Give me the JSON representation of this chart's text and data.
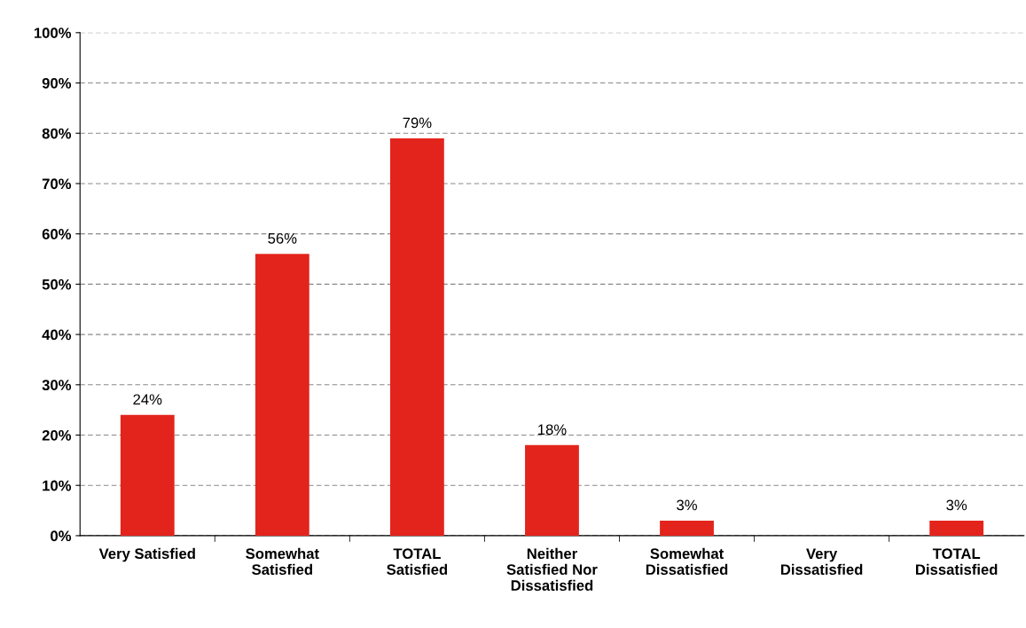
{
  "chart_data": {
    "type": "bar",
    "categories": [
      "Very Satisfied",
      "Somewhat\nSatisfied",
      "TOTAL\nSatisfied",
      "Neither\nSatisfied Nor\nDissatisfied",
      "Somewhat\nDissatisfied",
      "Very\nDissatisfied",
      "TOTAL\nDissatisfied"
    ],
    "values": [
      24,
      56,
      79,
      18,
      3,
      0,
      3
    ],
    "value_labels": [
      "24%",
      "56%",
      "79%",
      "18%",
      "3%",
      null,
      "3%"
    ],
    "color": "#e3241d",
    "ylim": [
      0,
      100
    ],
    "yticks": [
      {
        "value": 0,
        "label": "0%"
      },
      {
        "value": 10,
        "label": "10%"
      },
      {
        "value": 20,
        "label": "20%"
      },
      {
        "value": 30,
        "label": "30%"
      },
      {
        "value": 40,
        "label": "40%"
      },
      {
        "value": 50,
        "label": "50%"
      },
      {
        "value": 60,
        "label": "60%"
      },
      {
        "value": 70,
        "label": "70%"
      },
      {
        "value": 80,
        "label": "80%"
      },
      {
        "value": 90,
        "label": "90%"
      },
      {
        "value": 100,
        "label": "100%"
      }
    ],
    "grid": "y"
  }
}
